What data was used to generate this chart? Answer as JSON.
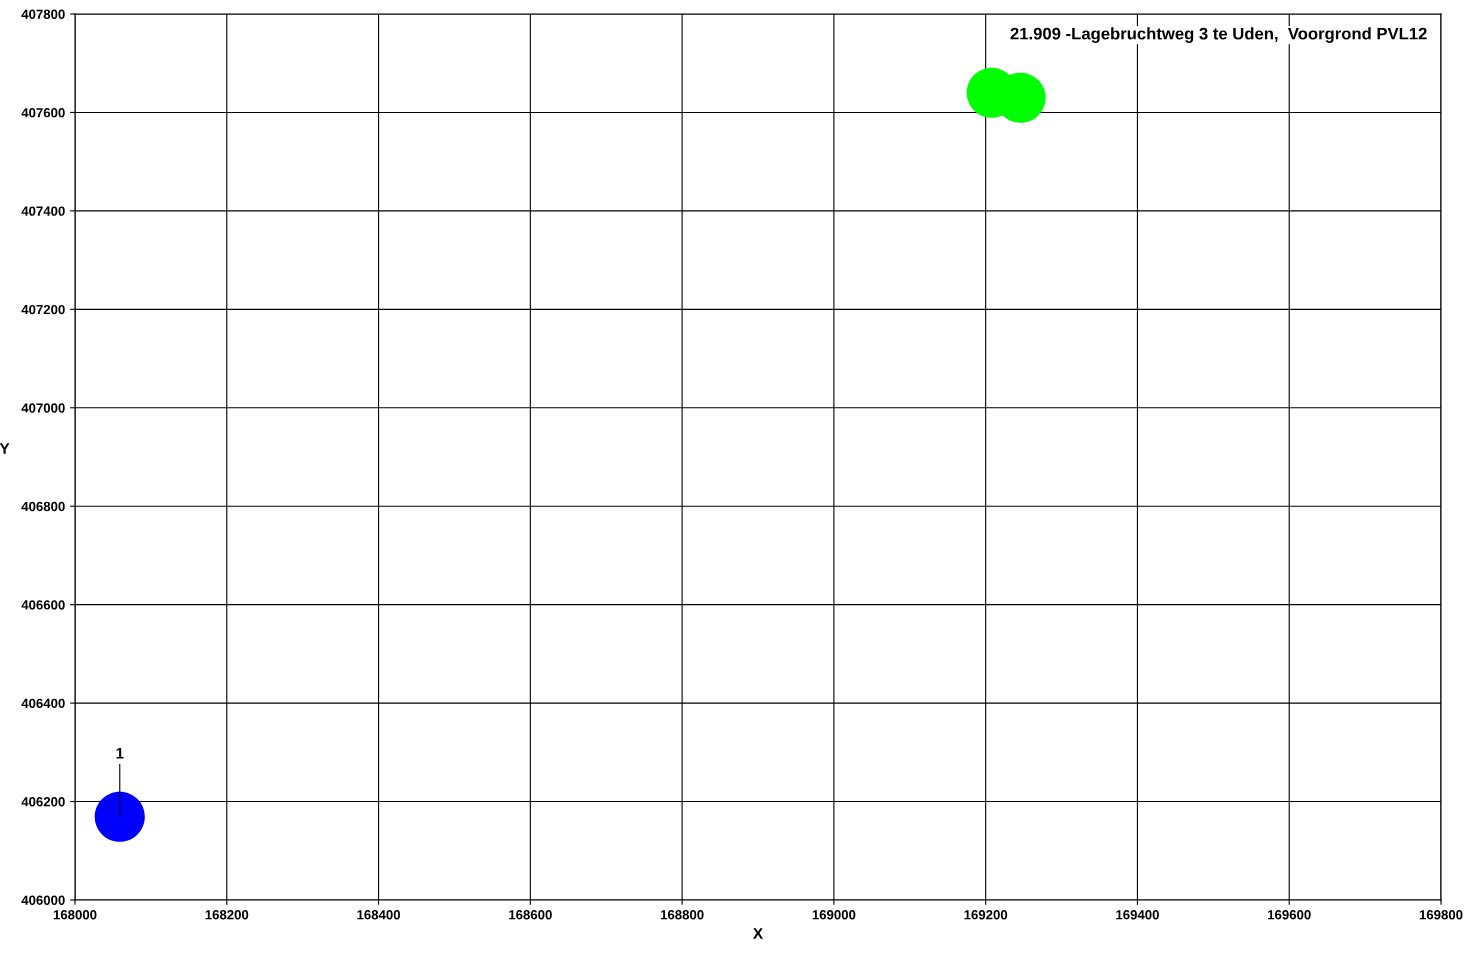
{
  "chart_data": {
    "type": "scatter",
    "title": "21.909 -Lagebruchtweg 3 te Uden,  Voorgrond PVL12",
    "xlabel": "X",
    "ylabel": "Y",
    "series": [
      {
        "color": "#0000ff",
        "x": [
          168059
        ],
        "values": [
          406169
        ]
      },
      {
        "color": "#00ff00",
        "x": [
          169208,
          169246
        ],
        "values": [
          407640,
          407630
        ]
      }
    ],
    "annotations": [
      {
        "text": "1",
        "x": 168059,
        "y": 406169
      }
    ],
    "xlim": [
      168000,
      169800
    ],
    "xticks": [
      168000,
      168200,
      168400,
      168600,
      168800,
      169000,
      169200,
      169400,
      169600,
      169800
    ],
    "ylim": [
      406000,
      407800
    ],
    "yticks": [
      406000,
      406200,
      406400,
      406600,
      406800,
      407000,
      407200,
      407400,
      407600,
      407800
    ],
    "grid": true,
    "marker": "circle"
  }
}
